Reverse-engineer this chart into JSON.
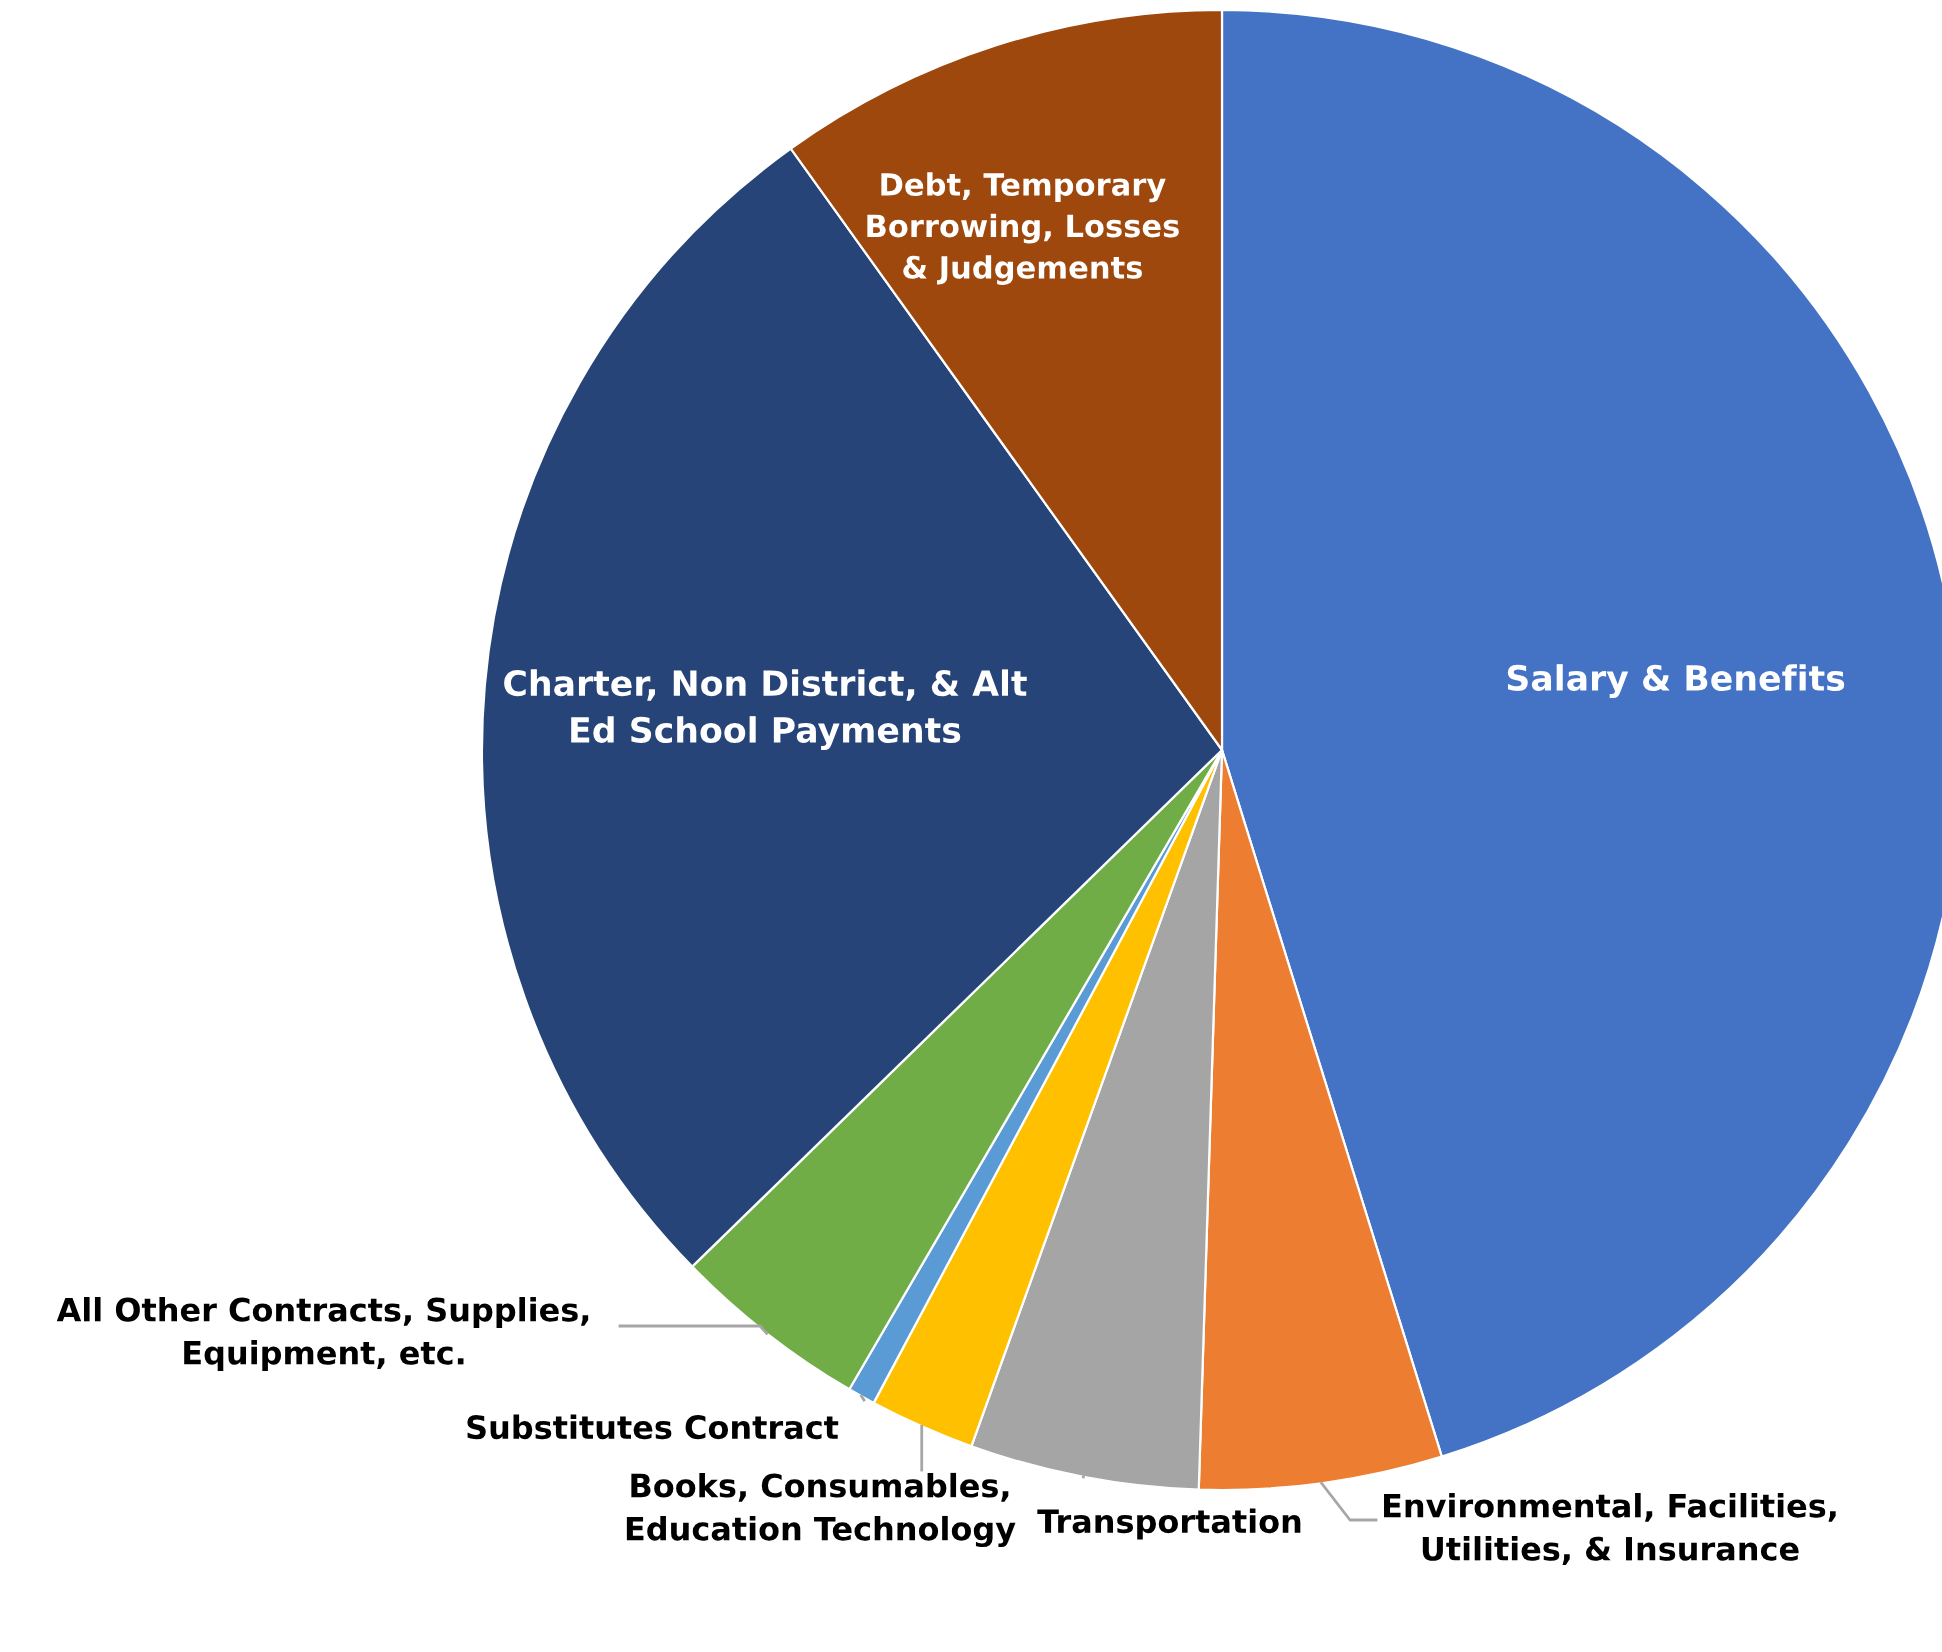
{
  "chart_data": {
    "type": "pie",
    "categories": [
      "Salary & Benefits",
      "Environmental, Facilities,\nUtilities, & Insurance",
      "Transportation",
      "Books, Consumables,\nEducation Technology",
      "Substitutes Contract",
      "All Other Contracts, Supplies,\nEquipment, etc.",
      "Charter, Non District, & Alt\nEd School Payments",
      "Debt, Temporary\nBorrowing, Losses\n& Judgements"
    ],
    "values": [
      45.2,
      5.3,
      5.0,
      2.3,
      0.6,
      4.3,
      27.4,
      9.9
    ],
    "colors": [
      "#4472c4",
      "#ed7d31",
      "#a5a5a5",
      "#ffc000",
      "#5b9bd5",
      "#70ad47",
      "#264478",
      "#9e480e"
    ],
    "legend": false
  }
}
